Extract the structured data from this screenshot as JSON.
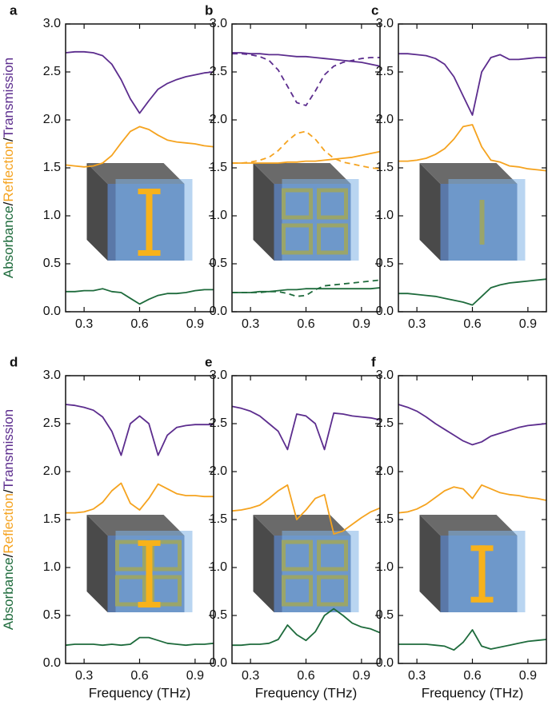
{
  "chart_data": [
    {
      "type": "line",
      "panel_label": "a",
      "ylabel": [
        "Absorbance",
        "/",
        "Reflection",
        "/",
        "Transmission"
      ],
      "ylabel_colors": [
        "#1e6b3c",
        "#111111",
        "#f5a31f",
        "#111111",
        "#5c2d8e"
      ],
      "x": [
        0.2,
        0.25,
        0.3,
        0.35,
        0.4,
        0.45,
        0.5,
        0.55,
        0.6,
        0.65,
        0.7,
        0.75,
        0.8,
        0.85,
        0.9,
        0.95,
        1.0
      ],
      "xlim": [
        0.2,
        1.0
      ],
      "xticks": [
        0.3,
        0.6,
        0.9
      ],
      "ylim": [
        0,
        3
      ],
      "yticks": [
        {
          "value": 0,
          "label": "0.0"
        },
        {
          "value": 0.5,
          "label": "0.5"
        },
        {
          "value": 1,
          "label": "1.0"
        },
        {
          "value": 1.5,
          "label": "1.5"
        },
        {
          "value": 2,
          "label": "2.0"
        },
        {
          "value": 2.5,
          "label": "2.5"
        },
        {
          "value": 3,
          "label": "3.0"
        }
      ],
      "series": [
        {
          "color": "#5c2d8e",
          "values": [
            2.7,
            2.71,
            2.71,
            2.7,
            2.67,
            2.58,
            2.42,
            2.22,
            2.07,
            2.2,
            2.32,
            2.38,
            2.42,
            2.45,
            2.47,
            2.49,
            2.5
          ]
        },
        {
          "color": "#f5a31f",
          "values": [
            1.53,
            1.52,
            1.51,
            1.52,
            1.55,
            1.63,
            1.76,
            1.88,
            1.93,
            1.9,
            1.84,
            1.79,
            1.77,
            1.76,
            1.75,
            1.73,
            1.72
          ]
        },
        {
          "color": "#1e6b3c",
          "values": [
            0.21,
            0.21,
            0.22,
            0.22,
            0.24,
            0.21,
            0.2,
            0.14,
            0.08,
            0.13,
            0.17,
            0.19,
            0.19,
            0.2,
            0.22,
            0.23,
            0.23
          ]
        }
      ]
    },
    {
      "type": "line",
      "panel_label": "b",
      "x": [
        0.2,
        0.25,
        0.3,
        0.35,
        0.4,
        0.45,
        0.5,
        0.55,
        0.6,
        0.65,
        0.7,
        0.75,
        0.8,
        0.85,
        0.9,
        0.95,
        1.0
      ],
      "xlim": [
        0.2,
        1.0
      ],
      "xticks": [
        0.3,
        0.6,
        0.9
      ],
      "ylim": [
        0,
        3
      ],
      "yticks": [
        {
          "value": 0,
          "label": "0.0"
        },
        {
          "value": 0.5,
          "label": "0.5"
        },
        {
          "value": 1,
          "label": "1.0"
        },
        {
          "value": 1.5,
          "label": "1.5"
        },
        {
          "value": 2,
          "label": "2.0"
        },
        {
          "value": 2.5,
          "label": "2.5"
        },
        {
          "value": 3,
          "label": "3.0"
        }
      ],
      "series": [
        {
          "color": "#5c2d8e",
          "values": [
            2.7,
            2.7,
            2.69,
            2.69,
            2.68,
            2.68,
            2.67,
            2.66,
            2.66,
            2.65,
            2.64,
            2.63,
            2.62,
            2.61,
            2.6,
            2.58,
            2.56
          ]
        },
        {
          "color": "#5c2d8e",
          "dashed": true,
          "values": [
            2.69,
            2.69,
            2.68,
            2.66,
            2.62,
            2.52,
            2.35,
            2.18,
            2.15,
            2.3,
            2.47,
            2.56,
            2.6,
            2.62,
            2.64,
            2.65,
            2.65
          ]
        },
        {
          "color": "#f5a31f",
          "values": [
            1.55,
            1.55,
            1.55,
            1.55,
            1.55,
            1.55,
            1.56,
            1.56,
            1.57,
            1.57,
            1.58,
            1.59,
            1.6,
            1.61,
            1.63,
            1.65,
            1.67
          ]
        },
        {
          "color": "#f5a31f",
          "dashed": true,
          "values": [
            1.55,
            1.55,
            1.56,
            1.58,
            1.61,
            1.68,
            1.78,
            1.86,
            1.88,
            1.8,
            1.68,
            1.6,
            1.56,
            1.54,
            1.52,
            1.5,
            1.49
          ]
        },
        {
          "color": "#1e6b3c",
          "values": [
            0.2,
            0.2,
            0.2,
            0.21,
            0.21,
            0.22,
            0.23,
            0.23,
            0.24,
            0.24,
            0.24,
            0.24,
            0.24,
            0.24,
            0.24,
            0.24,
            0.25
          ]
        },
        {
          "color": "#1e6b3c",
          "dashed": true,
          "values": [
            0.2,
            0.2,
            0.2,
            0.2,
            0.21,
            0.21,
            0.19,
            0.16,
            0.17,
            0.23,
            0.27,
            0.28,
            0.29,
            0.3,
            0.31,
            0.32,
            0.33
          ]
        }
      ]
    },
    {
      "type": "line",
      "panel_label": "c",
      "x": [
        0.2,
        0.25,
        0.3,
        0.35,
        0.4,
        0.45,
        0.5,
        0.55,
        0.6,
        0.65,
        0.7,
        0.75,
        0.8,
        0.85,
        0.9,
        0.95,
        1.0
      ],
      "xlim": [
        0.2,
        1.0
      ],
      "xticks": [
        0.3,
        0.6,
        0.9
      ],
      "ylim": [
        0,
        3
      ],
      "yticks": [
        {
          "value": 0,
          "label": "0.0"
        },
        {
          "value": 0.5,
          "label": "0.5"
        },
        {
          "value": 1,
          "label": "1.0"
        },
        {
          "value": 1.5,
          "label": "1.5"
        },
        {
          "value": 2,
          "label": "2.0"
        },
        {
          "value": 2.5,
          "label": "2.5"
        },
        {
          "value": 3,
          "label": "3.0"
        }
      ],
      "series": [
        {
          "color": "#5c2d8e",
          "values": [
            2.69,
            2.69,
            2.68,
            2.67,
            2.64,
            2.58,
            2.45,
            2.25,
            2.05,
            2.5,
            2.65,
            2.68,
            2.63,
            2.63,
            2.64,
            2.65,
            2.65
          ]
        },
        {
          "color": "#f5a31f",
          "values": [
            1.57,
            1.57,
            1.58,
            1.6,
            1.64,
            1.7,
            1.8,
            1.93,
            1.95,
            1.72,
            1.58,
            1.56,
            1.52,
            1.51,
            1.49,
            1.48,
            1.47
          ]
        },
        {
          "color": "#1e6b3c",
          "values": [
            0.19,
            0.19,
            0.18,
            0.17,
            0.16,
            0.14,
            0.12,
            0.1,
            0.07,
            0.16,
            0.25,
            0.28,
            0.3,
            0.31,
            0.32,
            0.33,
            0.34
          ]
        }
      ]
    },
    {
      "type": "line",
      "panel_label": "d",
      "ylabel": [
        "Absorbance",
        "/",
        "Reflection",
        "/",
        "Transmission"
      ],
      "ylabel_colors": [
        "#1e6b3c",
        "#111111",
        "#f5a31f",
        "#111111",
        "#5c2d8e"
      ],
      "xlabel": "Frequency (THz)",
      "x": [
        0.2,
        0.25,
        0.3,
        0.35,
        0.4,
        0.45,
        0.5,
        0.55,
        0.6,
        0.65,
        0.7,
        0.75,
        0.8,
        0.85,
        0.9,
        0.95,
        1.0
      ],
      "xlim": [
        0.2,
        1.0
      ],
      "xticks": [
        0.3,
        0.6,
        0.9
      ],
      "ylim": [
        0,
        3
      ],
      "yticks": [
        {
          "value": 0,
          "label": "0.0"
        },
        {
          "value": 0.5,
          "label": "0.5"
        },
        {
          "value": 1,
          "label": "1.0"
        },
        {
          "value": 1.5,
          "label": "1.5"
        },
        {
          "value": 2,
          "label": "2.0"
        },
        {
          "value": 2.5,
          "label": "2.5"
        },
        {
          "value": 3,
          "label": "3.0"
        }
      ],
      "series": [
        {
          "color": "#5c2d8e",
          "values": [
            2.7,
            2.69,
            2.67,
            2.64,
            2.57,
            2.42,
            2.17,
            2.5,
            2.58,
            2.5,
            2.17,
            2.38,
            2.46,
            2.48,
            2.49,
            2.49,
            2.49
          ]
        },
        {
          "color": "#f5a31f",
          "values": [
            1.57,
            1.57,
            1.58,
            1.61,
            1.68,
            1.8,
            1.88,
            1.67,
            1.6,
            1.72,
            1.87,
            1.82,
            1.77,
            1.75,
            1.75,
            1.74,
            1.74
          ]
        },
        {
          "color": "#1e6b3c",
          "values": [
            0.19,
            0.2,
            0.2,
            0.2,
            0.19,
            0.2,
            0.19,
            0.2,
            0.27,
            0.27,
            0.24,
            0.21,
            0.2,
            0.19,
            0.2,
            0.2,
            0.21
          ]
        }
      ]
    },
    {
      "type": "line",
      "panel_label": "e",
      "xlabel": "Frequency (THz)",
      "x": [
        0.2,
        0.25,
        0.3,
        0.35,
        0.4,
        0.45,
        0.5,
        0.55,
        0.6,
        0.65,
        0.7,
        0.75,
        0.8,
        0.85,
        0.9,
        0.95,
        1.0
      ],
      "xlim": [
        0.2,
        1.0
      ],
      "xticks": [
        0.3,
        0.6,
        0.9
      ],
      "ylim": [
        0,
        3
      ],
      "yticks": [
        {
          "value": 0,
          "label": "0.0"
        },
        {
          "value": 0.5,
          "label": "0.5"
        },
        {
          "value": 1,
          "label": "1.0"
        },
        {
          "value": 1.5,
          "label": "1.5"
        },
        {
          "value": 2,
          "label": "2.0"
        },
        {
          "value": 2.5,
          "label": "2.5"
        },
        {
          "value": 3,
          "label": "3.0"
        }
      ],
      "series": [
        {
          "color": "#5c2d8e",
          "values": [
            2.68,
            2.66,
            2.63,
            2.58,
            2.5,
            2.42,
            2.23,
            2.6,
            2.58,
            2.5,
            2.23,
            2.61,
            2.6,
            2.58,
            2.57,
            2.56,
            2.54
          ]
        },
        {
          "color": "#f5a31f",
          "values": [
            1.59,
            1.6,
            1.62,
            1.65,
            1.72,
            1.8,
            1.86,
            1.5,
            1.6,
            1.72,
            1.76,
            1.35,
            1.38,
            1.45,
            1.52,
            1.58,
            1.62
          ]
        },
        {
          "color": "#1e6b3c",
          "values": [
            0.19,
            0.19,
            0.2,
            0.2,
            0.21,
            0.25,
            0.4,
            0.3,
            0.24,
            0.33,
            0.5,
            0.57,
            0.5,
            0.42,
            0.38,
            0.36,
            0.32
          ]
        }
      ]
    },
    {
      "type": "line",
      "panel_label": "f",
      "xlabel": "Frequency (THz)",
      "x": [
        0.2,
        0.25,
        0.3,
        0.35,
        0.4,
        0.45,
        0.5,
        0.55,
        0.6,
        0.65,
        0.7,
        0.75,
        0.8,
        0.85,
        0.9,
        0.95,
        1.0
      ],
      "xlim": [
        0.2,
        1.0
      ],
      "xticks": [
        0.3,
        0.6,
        0.9
      ],
      "ylim": [
        0,
        3
      ],
      "yticks": [
        {
          "value": 0,
          "label": "0.0"
        },
        {
          "value": 0.5,
          "label": "0.5"
        },
        {
          "value": 1,
          "label": "1.0"
        },
        {
          "value": 1.5,
          "label": "1.5"
        },
        {
          "value": 2,
          "label": "2.0"
        },
        {
          "value": 2.5,
          "label": "2.5"
        },
        {
          "value": 3,
          "label": "3.0"
        }
      ],
      "series": [
        {
          "color": "#5c2d8e",
          "values": [
            2.7,
            2.67,
            2.63,
            2.57,
            2.5,
            2.44,
            2.38,
            2.32,
            2.28,
            2.31,
            2.37,
            2.4,
            2.43,
            2.46,
            2.48,
            2.49,
            2.5
          ]
        },
        {
          "color": "#f5a31f",
          "values": [
            1.57,
            1.58,
            1.61,
            1.66,
            1.73,
            1.8,
            1.84,
            1.82,
            1.72,
            1.86,
            1.82,
            1.78,
            1.76,
            1.75,
            1.73,
            1.72,
            1.7
          ]
        },
        {
          "color": "#1e6b3c",
          "values": [
            0.2,
            0.2,
            0.2,
            0.2,
            0.19,
            0.18,
            0.14,
            0.22,
            0.35,
            0.18,
            0.15,
            0.17,
            0.19,
            0.21,
            0.23,
            0.24,
            0.25
          ]
        }
      ]
    }
  ]
}
